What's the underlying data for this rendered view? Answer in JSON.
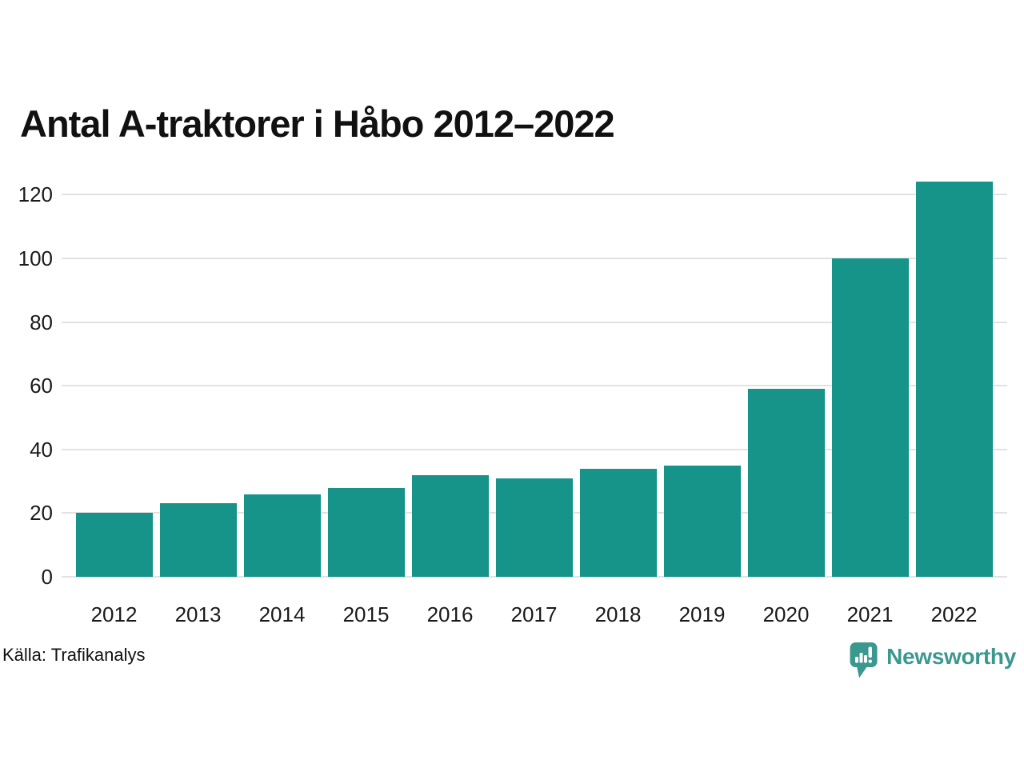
{
  "chart_data": {
    "type": "bar",
    "title": "Antal A-traktorer i Håbo 2012–2022",
    "categories": [
      "2012",
      "2013",
      "2014",
      "2015",
      "2016",
      "2017",
      "2018",
      "2019",
      "2020",
      "2021",
      "2022"
    ],
    "values": [
      20,
      23,
      26,
      28,
      32,
      31,
      34,
      35,
      59,
      100,
      124
    ],
    "yticks": [
      0,
      20,
      40,
      60,
      80,
      100,
      120
    ],
    "ylim": [
      0,
      124
    ],
    "xlabel": "",
    "ylabel": "",
    "grid": "horizontal",
    "legend": "none",
    "bar_color": "#17948a",
    "grid_color": "#e2e2e2",
    "tick_label_color": "#1a1a1a",
    "title_color": "#111111"
  },
  "footer": {
    "source": "Källa: Trafikanalys",
    "logo": {
      "text": "Newsworthy",
      "color": "#3a988f",
      "icon": "speech-bubble-bar-chart"
    }
  }
}
